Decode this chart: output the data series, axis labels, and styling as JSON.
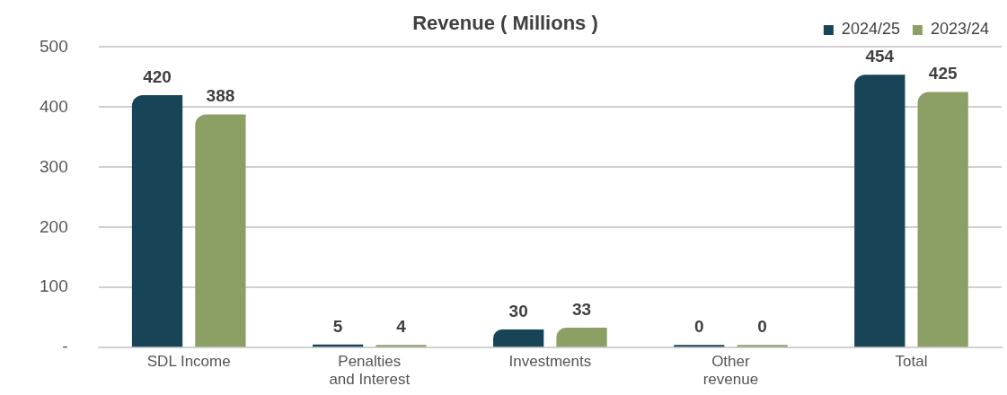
{
  "chart_data": {
    "type": "bar",
    "title": "Revenue ( Millions )",
    "categories": [
      "SDL Income",
      "Penalties and Interest",
      "Investments",
      "Other revenue",
      "Total"
    ],
    "series": [
      {
        "name": "2024/25",
        "color": "#174457",
        "values": [
          420,
          5,
          30,
          0,
          454
        ]
      },
      {
        "name": "2023/24",
        "color": "#8ca066",
        "values": [
          388,
          4,
          33,
          0,
          425
        ]
      }
    ],
    "ylim": [
      0,
      500
    ],
    "yticks": [
      {
        "value": 0,
        "label": "-"
      },
      100,
      200,
      300,
      400,
      500
    ],
    "grid": "y",
    "legend": "top right",
    "data_labels": true
  }
}
